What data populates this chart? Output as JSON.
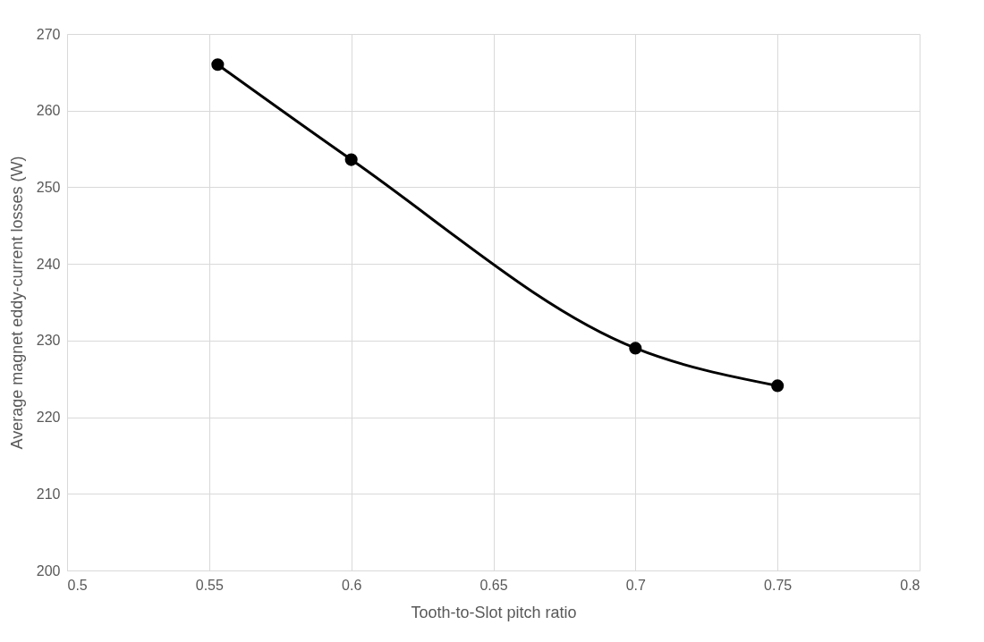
{
  "chart_data": {
    "type": "line",
    "xlabel": "Tooth-to-Slot pitch ratio",
    "ylabel": "Average magnet eddy-current losses (W)",
    "x": [
      0.553,
      0.6,
      0.7,
      0.75
    ],
    "series": [
      {
        "color": "#000000",
        "values": [
          266,
          253.6,
          229,
          224.1
        ]
      }
    ],
    "xlim": [
      0.5,
      0.8
    ],
    "xticks": [
      0.5,
      0.55,
      0.6,
      0.65,
      0.7,
      0.75,
      0.8
    ],
    "ylim": [
      200,
      270
    ],
    "yticks": [
      200,
      210,
      220,
      230,
      240,
      250,
      260,
      270
    ],
    "grid": true,
    "marker": "circle",
    "line_style": "solid"
  }
}
